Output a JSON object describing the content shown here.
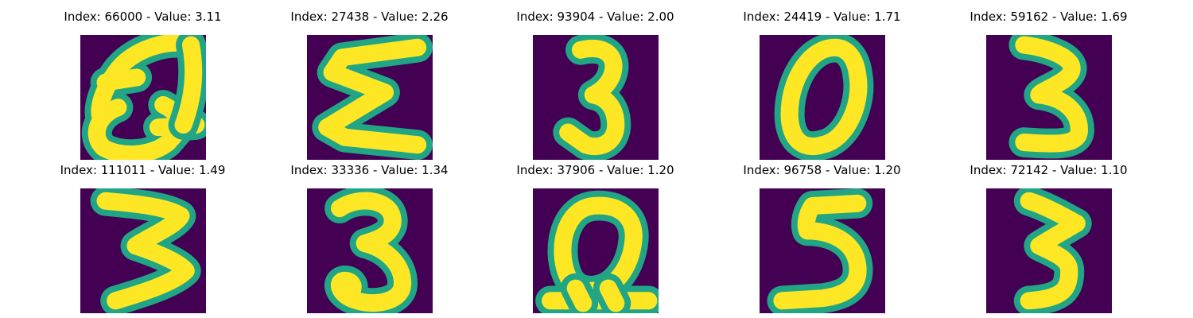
{
  "colors": {
    "background": "#440154",
    "mid": "#21a585",
    "foreground": "#fde725"
  },
  "panels": [
    {
      "title": "Index: 66000 - Value: 3.11",
      "glyph": "Q-loop"
    },
    {
      "title": "Index: 27438 - Value: 2.26",
      "glyph": "sigma"
    },
    {
      "title": "Index: 93904 - Value: 2.00",
      "glyph": "3"
    },
    {
      "title": "Index: 24419 - Value: 1.71",
      "glyph": "0"
    },
    {
      "title": "Index: 59162 - Value: 1.69",
      "glyph": "3"
    },
    {
      "title": "Index: 111011 - Value: 1.49",
      "glyph": "3-wide"
    },
    {
      "title": "Index: 33336 - Value: 1.34",
      "glyph": "3-round"
    },
    {
      "title": "Index: 37906 - Value: 1.20",
      "glyph": "Q-underline"
    },
    {
      "title": "Index: 96758 - Value: 1.20",
      "glyph": "5"
    },
    {
      "title": "Index: 72142 - Value: 1.10",
      "glyph": "3-sharp"
    }
  ]
}
